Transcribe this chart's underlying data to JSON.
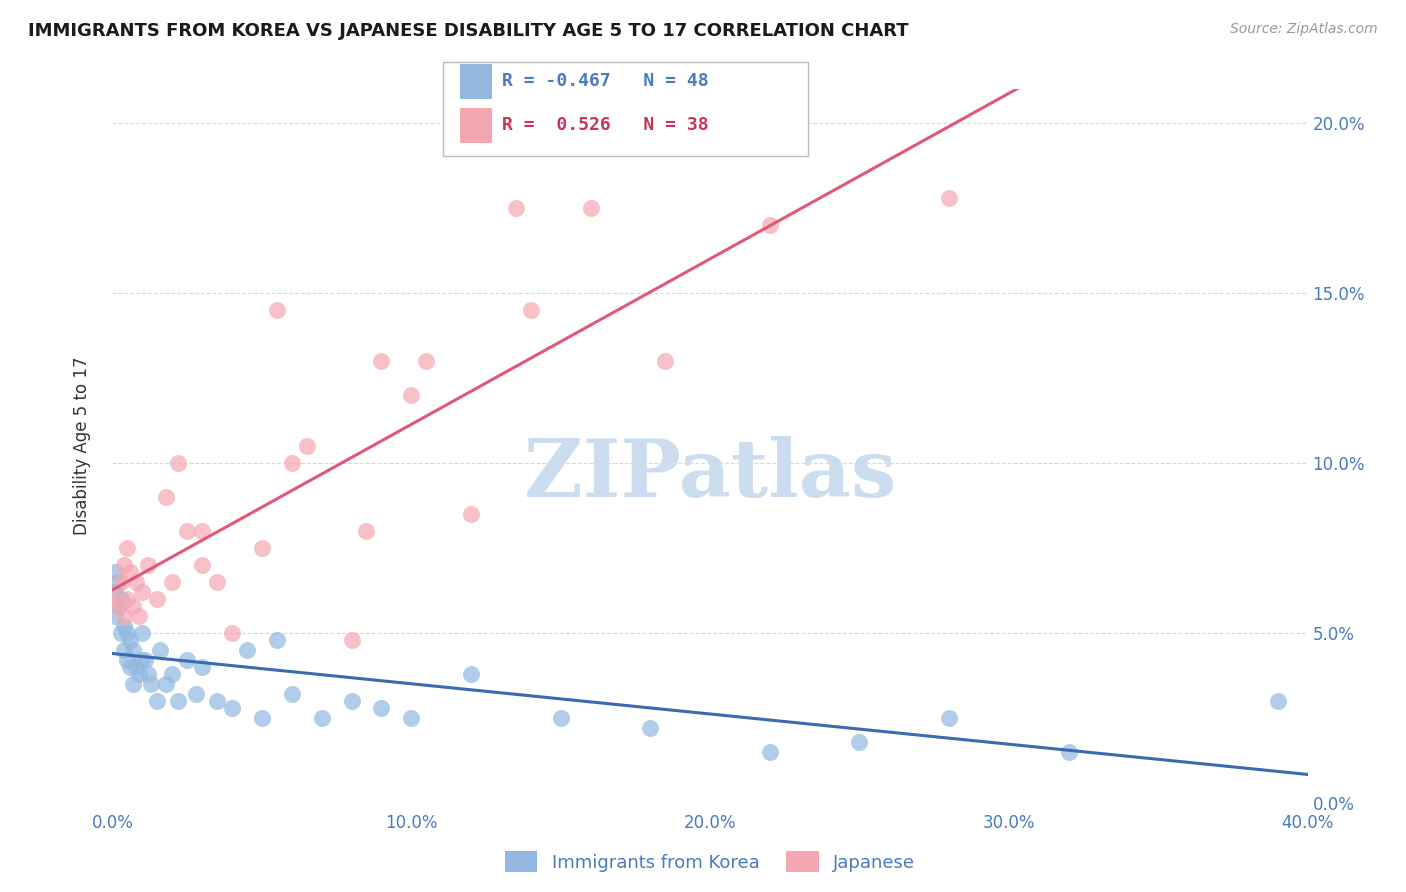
{
  "title": "IMMIGRANTS FROM KOREA VS JAPANESE DISABILITY AGE 5 TO 17 CORRELATION CHART",
  "source": "Source: ZipAtlas.com",
  "ylabel": "Disability Age 5 to 17",
  "legend_label1": "Immigrants from Korea",
  "legend_label2": "Japanese",
  "legend_r1": "R = -0.467",
  "legend_n1": "N = 48",
  "legend_r2": "R =  0.526",
  "legend_n2": "N = 38",
  "xlim": [
    0.0,
    0.4
  ],
  "ylim": [
    0.0,
    0.21
  ],
  "yticks": [
    0.0,
    0.05,
    0.1,
    0.15,
    0.2
  ],
  "xticks": [
    0.0,
    0.1,
    0.2,
    0.3,
    0.4
  ],
  "color_blue": "#92b8e0",
  "color_pink": "#f4a7b0",
  "color_blue_line": "#3a6bb0",
  "color_pink_line": "#e05878",
  "watermark_color": "#ccddf0",
  "blue_x": [
    0.001,
    0.001,
    0.001,
    0.002,
    0.002,
    0.003,
    0.003,
    0.004,
    0.004,
    0.005,
    0.005,
    0.006,
    0.006,
    0.007,
    0.007,
    0.008,
    0.009,
    0.01,
    0.01,
    0.011,
    0.012,
    0.013,
    0.015,
    0.016,
    0.018,
    0.02,
    0.022,
    0.025,
    0.028,
    0.03,
    0.035,
    0.04,
    0.045,
    0.05,
    0.055,
    0.06,
    0.07,
    0.08,
    0.09,
    0.1,
    0.12,
    0.15,
    0.18,
    0.22,
    0.25,
    0.28,
    0.32,
    0.39
  ],
  "blue_y": [
    0.062,
    0.068,
    0.055,
    0.058,
    0.065,
    0.06,
    0.05,
    0.052,
    0.045,
    0.05,
    0.042,
    0.048,
    0.04,
    0.045,
    0.035,
    0.04,
    0.038,
    0.05,
    0.042,
    0.042,
    0.038,
    0.035,
    0.03,
    0.045,
    0.035,
    0.038,
    0.03,
    0.042,
    0.032,
    0.04,
    0.03,
    0.028,
    0.045,
    0.025,
    0.048,
    0.032,
    0.025,
    0.03,
    0.028,
    0.025,
    0.038,
    0.025,
    0.022,
    0.015,
    0.018,
    0.025,
    0.015,
    0.03
  ],
  "pink_x": [
    0.001,
    0.002,
    0.003,
    0.004,
    0.004,
    0.005,
    0.005,
    0.006,
    0.007,
    0.008,
    0.009,
    0.01,
    0.012,
    0.015,
    0.018,
    0.02,
    0.022,
    0.025,
    0.03,
    0.03,
    0.035,
    0.04,
    0.05,
    0.055,
    0.06,
    0.065,
    0.08,
    0.085,
    0.09,
    0.1,
    0.105,
    0.12,
    0.135,
    0.14,
    0.16,
    0.185,
    0.22,
    0.28
  ],
  "pink_y": [
    0.06,
    0.058,
    0.065,
    0.055,
    0.07,
    0.06,
    0.075,
    0.068,
    0.058,
    0.065,
    0.055,
    0.062,
    0.07,
    0.06,
    0.09,
    0.065,
    0.1,
    0.08,
    0.07,
    0.08,
    0.065,
    0.05,
    0.075,
    0.145,
    0.1,
    0.105,
    0.048,
    0.08,
    0.13,
    0.12,
    0.13,
    0.085,
    0.175,
    0.145,
    0.175,
    0.13,
    0.17,
    0.178
  ],
  "background": "#ffffff",
  "grid_color": "#d0d0d0"
}
